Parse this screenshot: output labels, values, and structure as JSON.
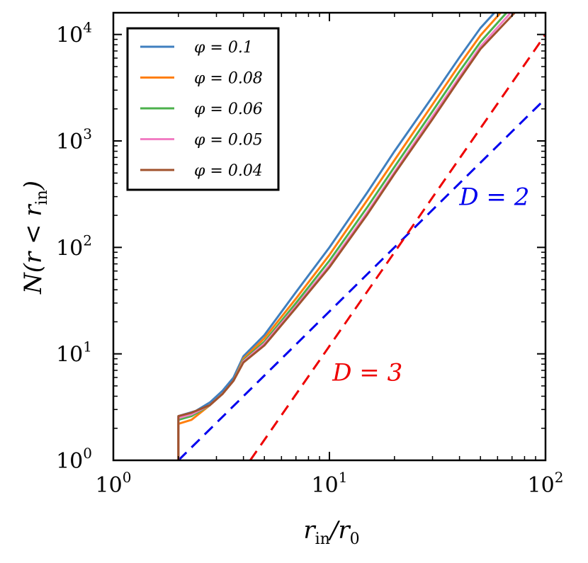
{
  "chart_data": {
    "type": "line",
    "xscale": "log",
    "yscale": "log",
    "xlim": [
      1,
      100
    ],
    "ylim": [
      1,
      16000
    ],
    "xlabel": "r_in / r_0",
    "ylabel": "N(r < r_in)",
    "x_ticks": [
      {
        "value": 1,
        "base": "10",
        "exp": "0"
      },
      {
        "value": 10,
        "base": "10",
        "exp": "1"
      },
      {
        "value": 100,
        "base": "10",
        "exp": "2"
      }
    ],
    "y_ticks": [
      {
        "value": 1,
        "base": "10",
        "exp": "0"
      },
      {
        "value": 10,
        "base": "10",
        "exp": "1"
      },
      {
        "value": 100,
        "base": "10",
        "exp": "2"
      },
      {
        "value": 1000,
        "base": "10",
        "exp": "3"
      },
      {
        "value": 10000,
        "base": "10",
        "exp": "4"
      }
    ],
    "legend_position": "top-left",
    "series": [
      {
        "name": "φ = 0.1",
        "color": "#3f7fbf",
        "x": [
          2,
          2,
          2.4,
          2.8,
          3.2,
          3.6,
          4,
          5,
          7,
          10,
          15,
          20,
          30,
          40,
          50,
          58
        ],
        "y": [
          1,
          2.6,
          2.9,
          3.5,
          4.5,
          6,
          9.5,
          15,
          38,
          100,
          330,
          800,
          2600,
          6100,
          11500,
          16000
        ]
      },
      {
        "name": "φ = 0.08",
        "color": "#ff7f0e",
        "x": [
          2,
          2,
          2.3,
          2.8,
          3.2,
          3.6,
          4,
          5,
          7,
          10,
          15,
          20,
          30,
          40,
          50,
          62
        ],
        "y": [
          1,
          2.2,
          2.4,
          3.3,
          4.2,
          5.6,
          9,
          14,
          33,
          85,
          280,
          660,
          2200,
          5200,
          9800,
          16000
        ]
      },
      {
        "name": "φ = 0.06",
        "color": "#4cb14c",
        "x": [
          2,
          2,
          2.3,
          2.8,
          3.2,
          3.6,
          4,
          5,
          7,
          10,
          15,
          20,
          30,
          40,
          50,
          66
        ],
        "y": [
          1,
          2.4,
          2.6,
          3.3,
          4.2,
          5.6,
          8.7,
          13,
          30,
          75,
          240,
          570,
          1900,
          4500,
          8500,
          16000
        ]
      },
      {
        "name": "φ = 0.05",
        "color": "#f27fc4",
        "x": [
          2,
          2,
          2.3,
          2.8,
          3.2,
          3.6,
          4,
          5,
          7,
          10,
          15,
          20,
          30,
          40,
          50,
          69
        ],
        "y": [
          1,
          2.5,
          2.7,
          3.3,
          4.2,
          5.6,
          8.5,
          12.5,
          28,
          68,
          215,
          510,
          1700,
          4000,
          7700,
          16000
        ]
      },
      {
        "name": "φ = 0.04",
        "color": "#a0522d",
        "x": [
          2,
          2,
          2.3,
          2.8,
          3.2,
          3.6,
          4,
          5,
          7,
          10,
          15,
          20,
          30,
          40,
          50,
          72
        ],
        "y": [
          1,
          2.6,
          2.8,
          3.3,
          4.2,
          5.6,
          8.3,
          12,
          27,
          65,
          205,
          490,
          1600,
          3800,
          7300,
          16000
        ]
      }
    ],
    "reference_lines": [
      {
        "name": "D = 2",
        "color": "#0000ee",
        "dash": true,
        "x": [
          2,
          100
        ],
        "y": [
          1,
          2500
        ]
      },
      {
        "name": "D = 3",
        "color": "#ee0000",
        "dash": true,
        "x": [
          4.3,
          100
        ],
        "y": [
          1,
          10000
        ]
      }
    ],
    "annotations": [
      {
        "text": "D = 2",
        "color": "#0000ee",
        "x": 58,
        "y": 250
      },
      {
        "text": "D = 3",
        "color": "#ee0000",
        "x": 15,
        "y": 5.6
      }
    ]
  },
  "labels": {
    "x_axis": {
      "a": "r",
      "a_sub": "in",
      "b": "/r",
      "b_sub": "0"
    },
    "y_axis": {
      "main": "N(r < r",
      "sub": "in",
      "close": ")"
    }
  }
}
